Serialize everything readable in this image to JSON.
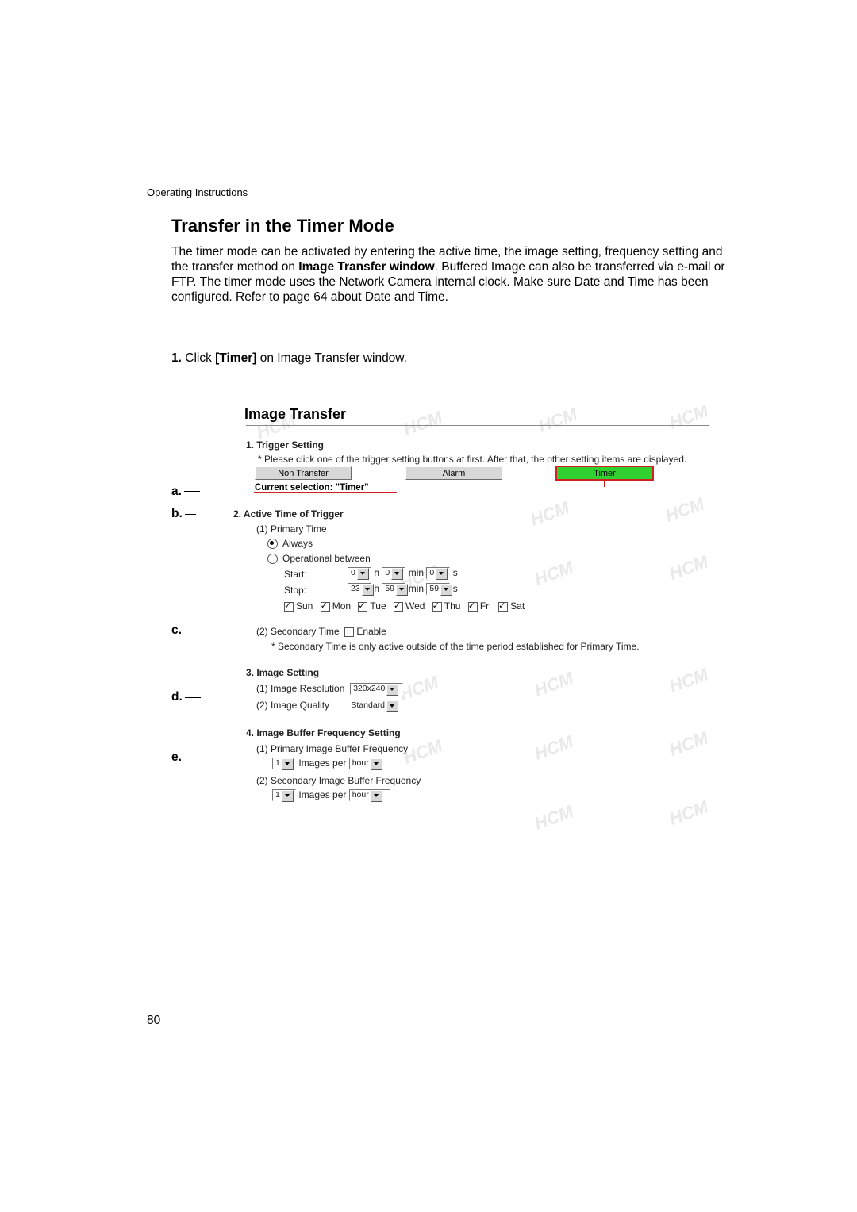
{
  "header": "Operating Instructions",
  "title": "Transfer in the Timer Mode",
  "body_html": "The timer mode can be activated by entering the active time, the image setting, frequency setting and the transfer method on <b>Image Transfer window</b>. Buffered Image can also be transferred via e-mail or FTP. The timer mode uses the Network Camera internal clock. Make sure Date and Time has been configured. Refer to page 64 about Date and Time.",
  "step1_prefix": "1.",
  "step1_text_a": " Click ",
  "step1_bold": "[Timer]",
  "step1_text_b": " on Image Transfer window.",
  "page_number": "80",
  "callouts": {
    "a": "a.",
    "b": "b.",
    "c": "c.",
    "d": "d.",
    "e": "e."
  },
  "wm_text": "HCM",
  "panel": {
    "title": "Image Transfer",
    "sec1": {
      "head": "1. Trigger Setting",
      "note": "* Please click one of the trigger setting buttons at first. After that, the other setting items are displayed.",
      "btn_non": "Non Transfer",
      "btn_alarm": "Alarm",
      "btn_timer": "Timer",
      "current": "Current selection: \"Timer\""
    },
    "sec2": {
      "head": "2. Active Time of Trigger",
      "primary": "(1) Primary Time",
      "always": "Always",
      "opbetween": "Operational between",
      "start": "Start:",
      "stop": "Stop:",
      "h": "h",
      "min": "min",
      "s": "s",
      "start_h": "0",
      "start_m": "0",
      "start_s": "0",
      "stop_h": "23",
      "stop_m": "59",
      "stop_s": "59",
      "days": {
        "sun": "Sun",
        "mon": "Mon",
        "tue": "Tue",
        "wed": "Wed",
        "thu": "Thu",
        "fri": "Fri",
        "sat": "Sat"
      },
      "secondary": "(2) Secondary Time",
      "enable": "Enable",
      "sec_note": "* Secondary Time is only active outside of the time period established for Primary Time."
    },
    "sec3": {
      "head": "3. Image Setting",
      "res_lbl": "(1) Image Resolution",
      "res_val": "320x240",
      "qual_lbl": "(2) Image Quality",
      "qual_val": "Standard"
    },
    "sec4": {
      "head": "4. Image Buffer Frequency Setting",
      "p1": "(1) Primary Image Buffer Frequency",
      "p2": "(2) Secondary Image Buffer Frequency",
      "count": "1",
      "mid": "Images per",
      "unit": "hour"
    }
  }
}
